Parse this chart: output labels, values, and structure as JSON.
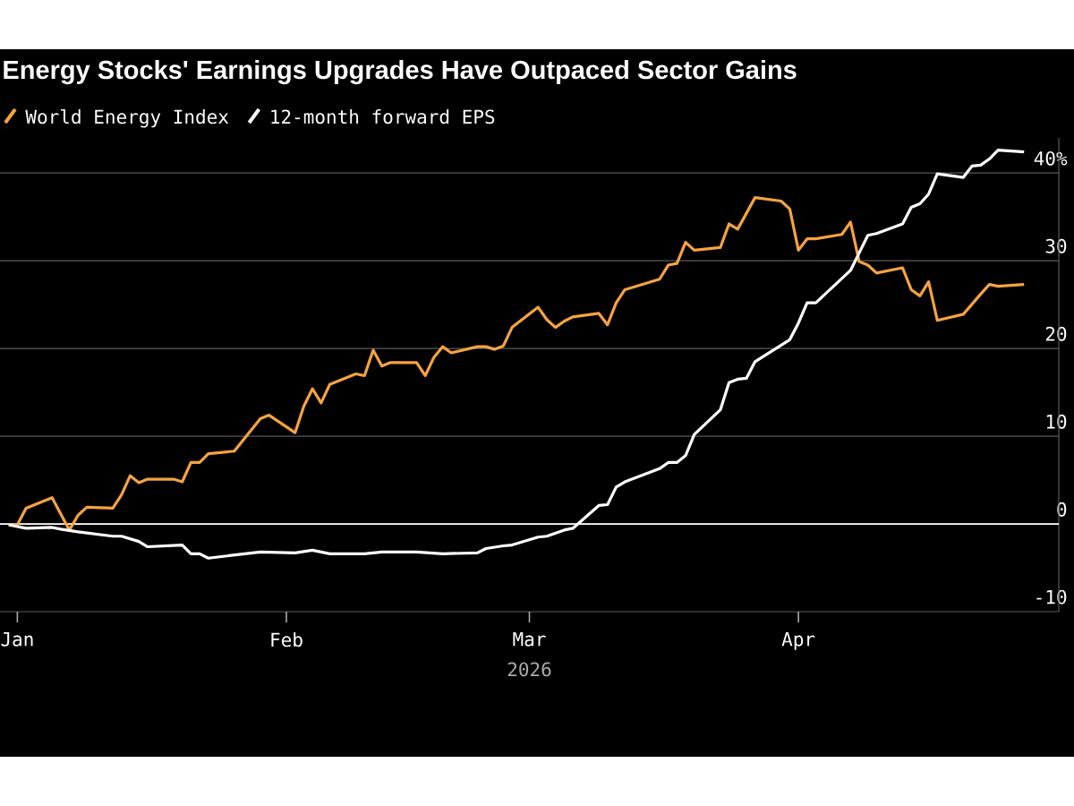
{
  "chart_data": {
    "type": "line",
    "title": "Energy Stocks' Earnings Upgrades Have Outpaced Sector Gains",
    "xlabel": "2026",
    "xlim": [
      "2025-12-30",
      "2026-05-01"
    ],
    "xticks": [
      {
        "value": "2026-01-01",
        "label": "Jan"
      },
      {
        "value": "2026-02-01",
        "label": "Feb"
      },
      {
        "value": "2026-03-01",
        "label": "Mar"
      },
      {
        "value": "2026-04-01",
        "label": "Apr"
      }
    ],
    "ylim": [
      -10,
      44
    ],
    "yticks": [
      -10,
      0,
      10,
      20,
      30,
      {
        "value": 40,
        "label": "40%"
      }
    ],
    "grid": "y",
    "legend": "top left",
    "ref_lines": [
      {
        "axis": "y",
        "value": 0,
        "color": "#ffffff"
      }
    ],
    "series": [
      {
        "name": "World Energy Index",
        "color": "#f5a340",
        "x": [
          "2025-12-31",
          "2026-01-01",
          "2026-01-02",
          "2026-01-05",
          "2026-01-07",
          "2026-01-08",
          "2026-01-09",
          "2026-01-12",
          "2026-01-13",
          "2026-01-14",
          "2026-01-15",
          "2026-01-16",
          "2026-01-19",
          "2026-01-20",
          "2026-01-21",
          "2026-01-22",
          "2026-01-23",
          "2026-01-26",
          "2026-01-29",
          "2026-01-30",
          "2026-02-02",
          "2026-02-03",
          "2026-02-04",
          "2026-02-05",
          "2026-02-06",
          "2026-02-09",
          "2026-02-10",
          "2026-02-11",
          "2026-02-12",
          "2026-02-13",
          "2026-02-16",
          "2026-02-17",
          "2026-02-18",
          "2026-02-19",
          "2026-02-20",
          "2026-02-23",
          "2026-02-24",
          "2026-02-25",
          "2026-02-26",
          "2026-02-27",
          "2026-03-02",
          "2026-03-03",
          "2026-03-04",
          "2026-03-05",
          "2026-03-06",
          "2026-03-09",
          "2026-03-10",
          "2026-03-11",
          "2026-03-12",
          "2026-03-16",
          "2026-03-17",
          "2026-03-18",
          "2026-03-19",
          "2026-03-20",
          "2026-03-23",
          "2026-03-24",
          "2026-03-25",
          "2026-03-27",
          "2026-03-30",
          "2026-03-31",
          "2026-04-01",
          "2026-04-02",
          "2026-04-03",
          "2026-04-06",
          "2026-04-07",
          "2026-04-08",
          "2026-04-09",
          "2026-04-10",
          "2026-04-13",
          "2026-04-14",
          "2026-04-15",
          "2026-04-16",
          "2026-04-17",
          "2026-04-20",
          "2026-04-22",
          "2026-04-23",
          "2026-04-24",
          "2026-04-27"
        ],
        "values": [
          -0.1,
          -0.1,
          1.8,
          3.0,
          -0.7,
          1.0,
          1.9,
          1.8,
          3.3,
          5.5,
          4.7,
          5.1,
          5.1,
          4.8,
          7.0,
          7.0,
          8.0,
          8.3,
          12.0,
          12.4,
          10.4,
          13.4,
          15.4,
          13.8,
          15.9,
          17.1,
          16.9,
          19.8,
          18.0,
          18.4,
          18.4,
          16.9,
          19.0,
          20.2,
          19.5,
          20.2,
          20.2,
          19.9,
          20.3,
          22.4,
          24.7,
          23.3,
          22.4,
          23.1,
          23.6,
          24.0,
          22.7,
          25.2,
          26.7,
          27.9,
          29.5,
          29.7,
          32.1,
          31.2,
          31.5,
          34.2,
          33.6,
          37.2,
          36.8,
          35.9,
          31.2,
          32.5,
          32.5,
          33.0,
          34.4,
          29.9,
          29.5,
          28.6,
          29.2,
          26.7,
          26.0,
          27.6,
          23.2,
          23.9,
          26.2,
          27.3,
          27.1,
          27.3
        ]
      },
      {
        "name": "12-month forward EPS",
        "color": "#ffffff",
        "x": [
          "2025-12-31",
          "2026-01-02",
          "2026-01-05",
          "2026-01-06",
          "2026-01-08",
          "2026-01-12",
          "2026-01-13",
          "2026-01-15",
          "2026-01-16",
          "2026-01-20",
          "2026-01-21",
          "2026-01-22",
          "2026-01-23",
          "2026-01-29",
          "2026-02-02",
          "2026-02-04",
          "2026-02-06",
          "2026-02-10",
          "2026-02-12",
          "2026-02-16",
          "2026-02-19",
          "2026-02-23",
          "2026-02-24",
          "2026-02-26",
          "2026-02-27",
          "2026-03-02",
          "2026-03-03",
          "2026-03-05",
          "2026-03-06",
          "2026-03-09",
          "2026-03-10",
          "2026-03-11",
          "2026-03-12",
          "2026-03-16",
          "2026-03-17",
          "2026-03-18",
          "2026-03-19",
          "2026-03-20",
          "2026-03-23",
          "2026-03-24",
          "2026-03-25",
          "2026-03-26",
          "2026-03-27",
          "2026-03-31",
          "2026-04-01",
          "2026-04-02",
          "2026-04-03",
          "2026-04-07",
          "2026-04-08",
          "2026-04-09",
          "2026-04-10",
          "2026-04-13",
          "2026-04-14",
          "2026-04-15",
          "2026-04-16",
          "2026-04-17",
          "2026-04-20",
          "2026-04-21",
          "2026-04-22",
          "2026-04-23",
          "2026-04-24",
          "2026-04-27"
        ],
        "values": [
          -0.1,
          -0.5,
          -0.4,
          -0.6,
          -0.9,
          -1.4,
          -1.4,
          -2.0,
          -2.6,
          -2.4,
          -3.4,
          -3.4,
          -3.9,
          -3.2,
          -3.3,
          -3.0,
          -3.4,
          -3.4,
          -3.2,
          -3.2,
          -3.4,
          -3.3,
          -2.8,
          -2.5,
          -2.4,
          -1.5,
          -1.4,
          -0.7,
          -0.5,
          2.1,
          2.2,
          4.2,
          4.8,
          6.3,
          7.0,
          7.0,
          7.8,
          10.2,
          13.0,
          16.1,
          16.5,
          16.6,
          18.5,
          21.0,
          22.9,
          25.2,
          25.2,
          28.9,
          30.9,
          32.9,
          33.1,
          34.2,
          36.1,
          36.5,
          37.6,
          39.9,
          39.5,
          40.8,
          40.9,
          41.6,
          42.6,
          42.4
        ]
      }
    ]
  }
}
